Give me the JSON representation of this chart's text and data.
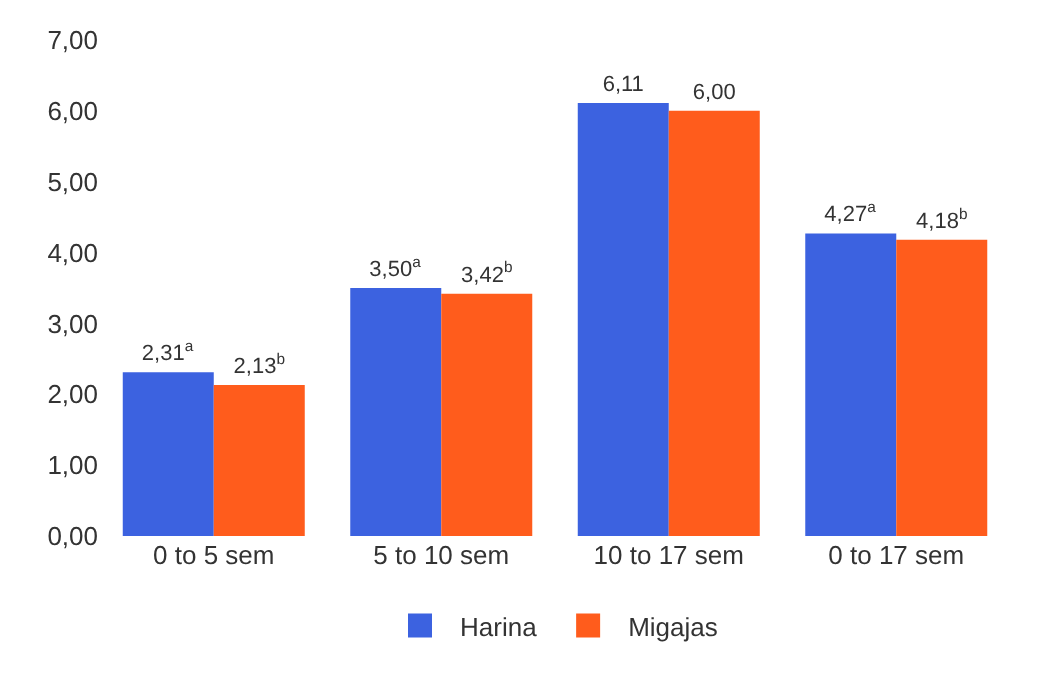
{
  "chart_data": {
    "type": "bar",
    "categories": [
      "0 to 5 sem",
      "5 to 10 sem",
      "10 to 17 sem",
      "0 to 17 sem"
    ],
    "series": [
      {
        "name": "Harina",
        "color": "#3c62e0",
        "values": [
          2.31,
          3.5,
          6.11,
          4.27
        ],
        "value_labels": [
          "2,31$^{a}$",
          "3,50$^{a}$",
          "6,11",
          "4,27$^{a}$"
        ]
      },
      {
        "name": "Migajas",
        "color": "#ff5c1c",
        "values": [
          2.13,
          3.42,
          6.0,
          4.18
        ],
        "value_labels": [
          "2,13$^{b}$",
          "3,42$^{b}$",
          "6,00",
          "4,18$^{b}$"
        ]
      }
    ],
    "ylim": [
      0,
      7
    ],
    "yticks": [
      {
        "value": 0,
        "label": "0,00"
      },
      {
        "value": 1,
        "label": "1,00"
      },
      {
        "value": 2,
        "label": "2,00"
      },
      {
        "value": 3,
        "label": "3,00"
      },
      {
        "value": 4,
        "label": "4,00"
      },
      {
        "value": 5,
        "label": "5,00"
      },
      {
        "value": 6,
        "label": "6,00"
      },
      {
        "value": 7,
        "label": "7,00"
      }
    ],
    "grid": false,
    "legend": "bottom"
  }
}
